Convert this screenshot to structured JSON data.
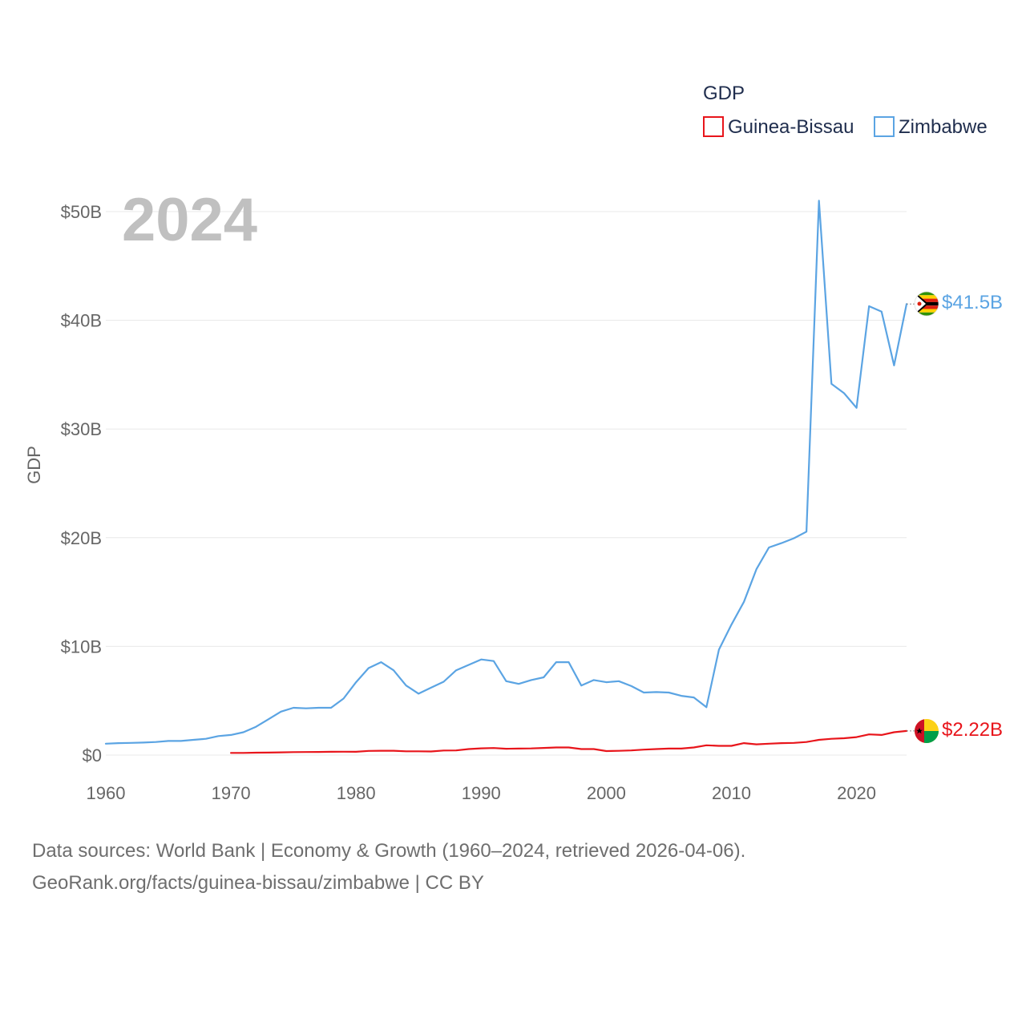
{
  "chart_data": {
    "type": "line",
    "year_label": "2024",
    "ylabel": "GDP",
    "xlim": [
      1960,
      2024
    ],
    "ylim": [
      0,
      50
    ],
    "x_ticks": [
      1960,
      1970,
      1980,
      1990,
      2000,
      2010,
      2020
    ],
    "x_tick_labels": [
      "1960",
      "1970",
      "1980",
      "1990",
      "2000",
      "2010",
      "2020"
    ],
    "y_ticks": [
      0,
      10,
      20,
      30,
      40,
      50
    ],
    "y_tick_labels": [
      "$0",
      "$10B",
      "$20B",
      "$30B",
      "$40B",
      "$50B"
    ],
    "legend": {
      "title": "GDP",
      "items": [
        {
          "name": "Guinea-Bissau",
          "color": "#e8151b"
        },
        {
          "name": "Zimbabwe",
          "color": "#5ba4e3"
        }
      ]
    },
    "series": [
      {
        "name": "Zimbabwe",
        "color": "#5ba4e3",
        "end_label": "$41.5B",
        "x": [
          1960,
          1961,
          1962,
          1963,
          1964,
          1965,
          1966,
          1967,
          1968,
          1969,
          1970,
          1971,
          1972,
          1973,
          1974,
          1975,
          1976,
          1977,
          1978,
          1979,
          1980,
          1981,
          1982,
          1983,
          1984,
          1985,
          1986,
          1987,
          1988,
          1989,
          1990,
          1991,
          1992,
          1993,
          1994,
          1995,
          1996,
          1997,
          1998,
          1999,
          2000,
          2001,
          2002,
          2003,
          2004,
          2005,
          2006,
          2007,
          2008,
          2009,
          2010,
          2011,
          2012,
          2013,
          2014,
          2015,
          2016,
          2017,
          2018,
          2019,
          2020,
          2021,
          2022,
          2023,
          2024
        ],
        "values": [
          1.05,
          1.1,
          1.12,
          1.15,
          1.2,
          1.3,
          1.3,
          1.4,
          1.5,
          1.75,
          1.85,
          2.1,
          2.6,
          3.3,
          4.0,
          4.35,
          4.3,
          4.35,
          4.35,
          5.2,
          6.7,
          8.0,
          8.55,
          7.8,
          6.4,
          5.65,
          6.2,
          6.75,
          7.8,
          8.3,
          8.8,
          8.65,
          6.8,
          6.55,
          6.9,
          7.15,
          8.55,
          8.55,
          6.4,
          6.9,
          6.7,
          6.8,
          6.35,
          5.75,
          5.8,
          5.75,
          5.45,
          5.3,
          4.4,
          9.7,
          12.0,
          14.1,
          17.1,
          19.1,
          19.5,
          19.95,
          20.55,
          51.0,
          34.15,
          33.3,
          31.95,
          41.3,
          40.8,
          35.85,
          41.5
        ]
      },
      {
        "name": "Guinea-Bissau",
        "color": "#e8151b",
        "end_label": "$2.22B",
        "x": [
          1970,
          1971,
          1972,
          1973,
          1974,
          1975,
          1976,
          1977,
          1978,
          1979,
          1980,
          1981,
          1982,
          1983,
          1984,
          1985,
          1986,
          1987,
          1988,
          1989,
          1990,
          1991,
          1992,
          1993,
          1994,
          1995,
          1996,
          1997,
          1998,
          1999,
          2000,
          2001,
          2002,
          2003,
          2004,
          2005,
          2006,
          2007,
          2008,
          2009,
          2010,
          2011,
          2012,
          2013,
          2014,
          2015,
          2016,
          2017,
          2018,
          2019,
          2020,
          2021,
          2022,
          2023,
          2024
        ],
        "values": [
          0.2,
          0.2,
          0.22,
          0.23,
          0.25,
          0.27,
          0.28,
          0.29,
          0.3,
          0.31,
          0.3,
          0.38,
          0.4,
          0.4,
          0.35,
          0.35,
          0.33,
          0.42,
          0.43,
          0.55,
          0.62,
          0.65,
          0.58,
          0.6,
          0.61,
          0.66,
          0.7,
          0.7,
          0.55,
          0.55,
          0.37,
          0.39,
          0.43,
          0.5,
          0.55,
          0.6,
          0.6,
          0.7,
          0.9,
          0.85,
          0.85,
          1.1,
          0.99,
          1.05,
          1.1,
          1.12,
          1.2,
          1.4,
          1.5,
          1.55,
          1.65,
          1.9,
          1.85,
          2.1,
          2.22
        ]
      }
    ]
  },
  "footer": {
    "line1": "Data sources: World Bank | Economy & Growth (1960–2024, retrieved 2026-04-06).",
    "line2": "GeoRank.org/facts/guinea-bissau/zimbabwe | CC BY"
  }
}
